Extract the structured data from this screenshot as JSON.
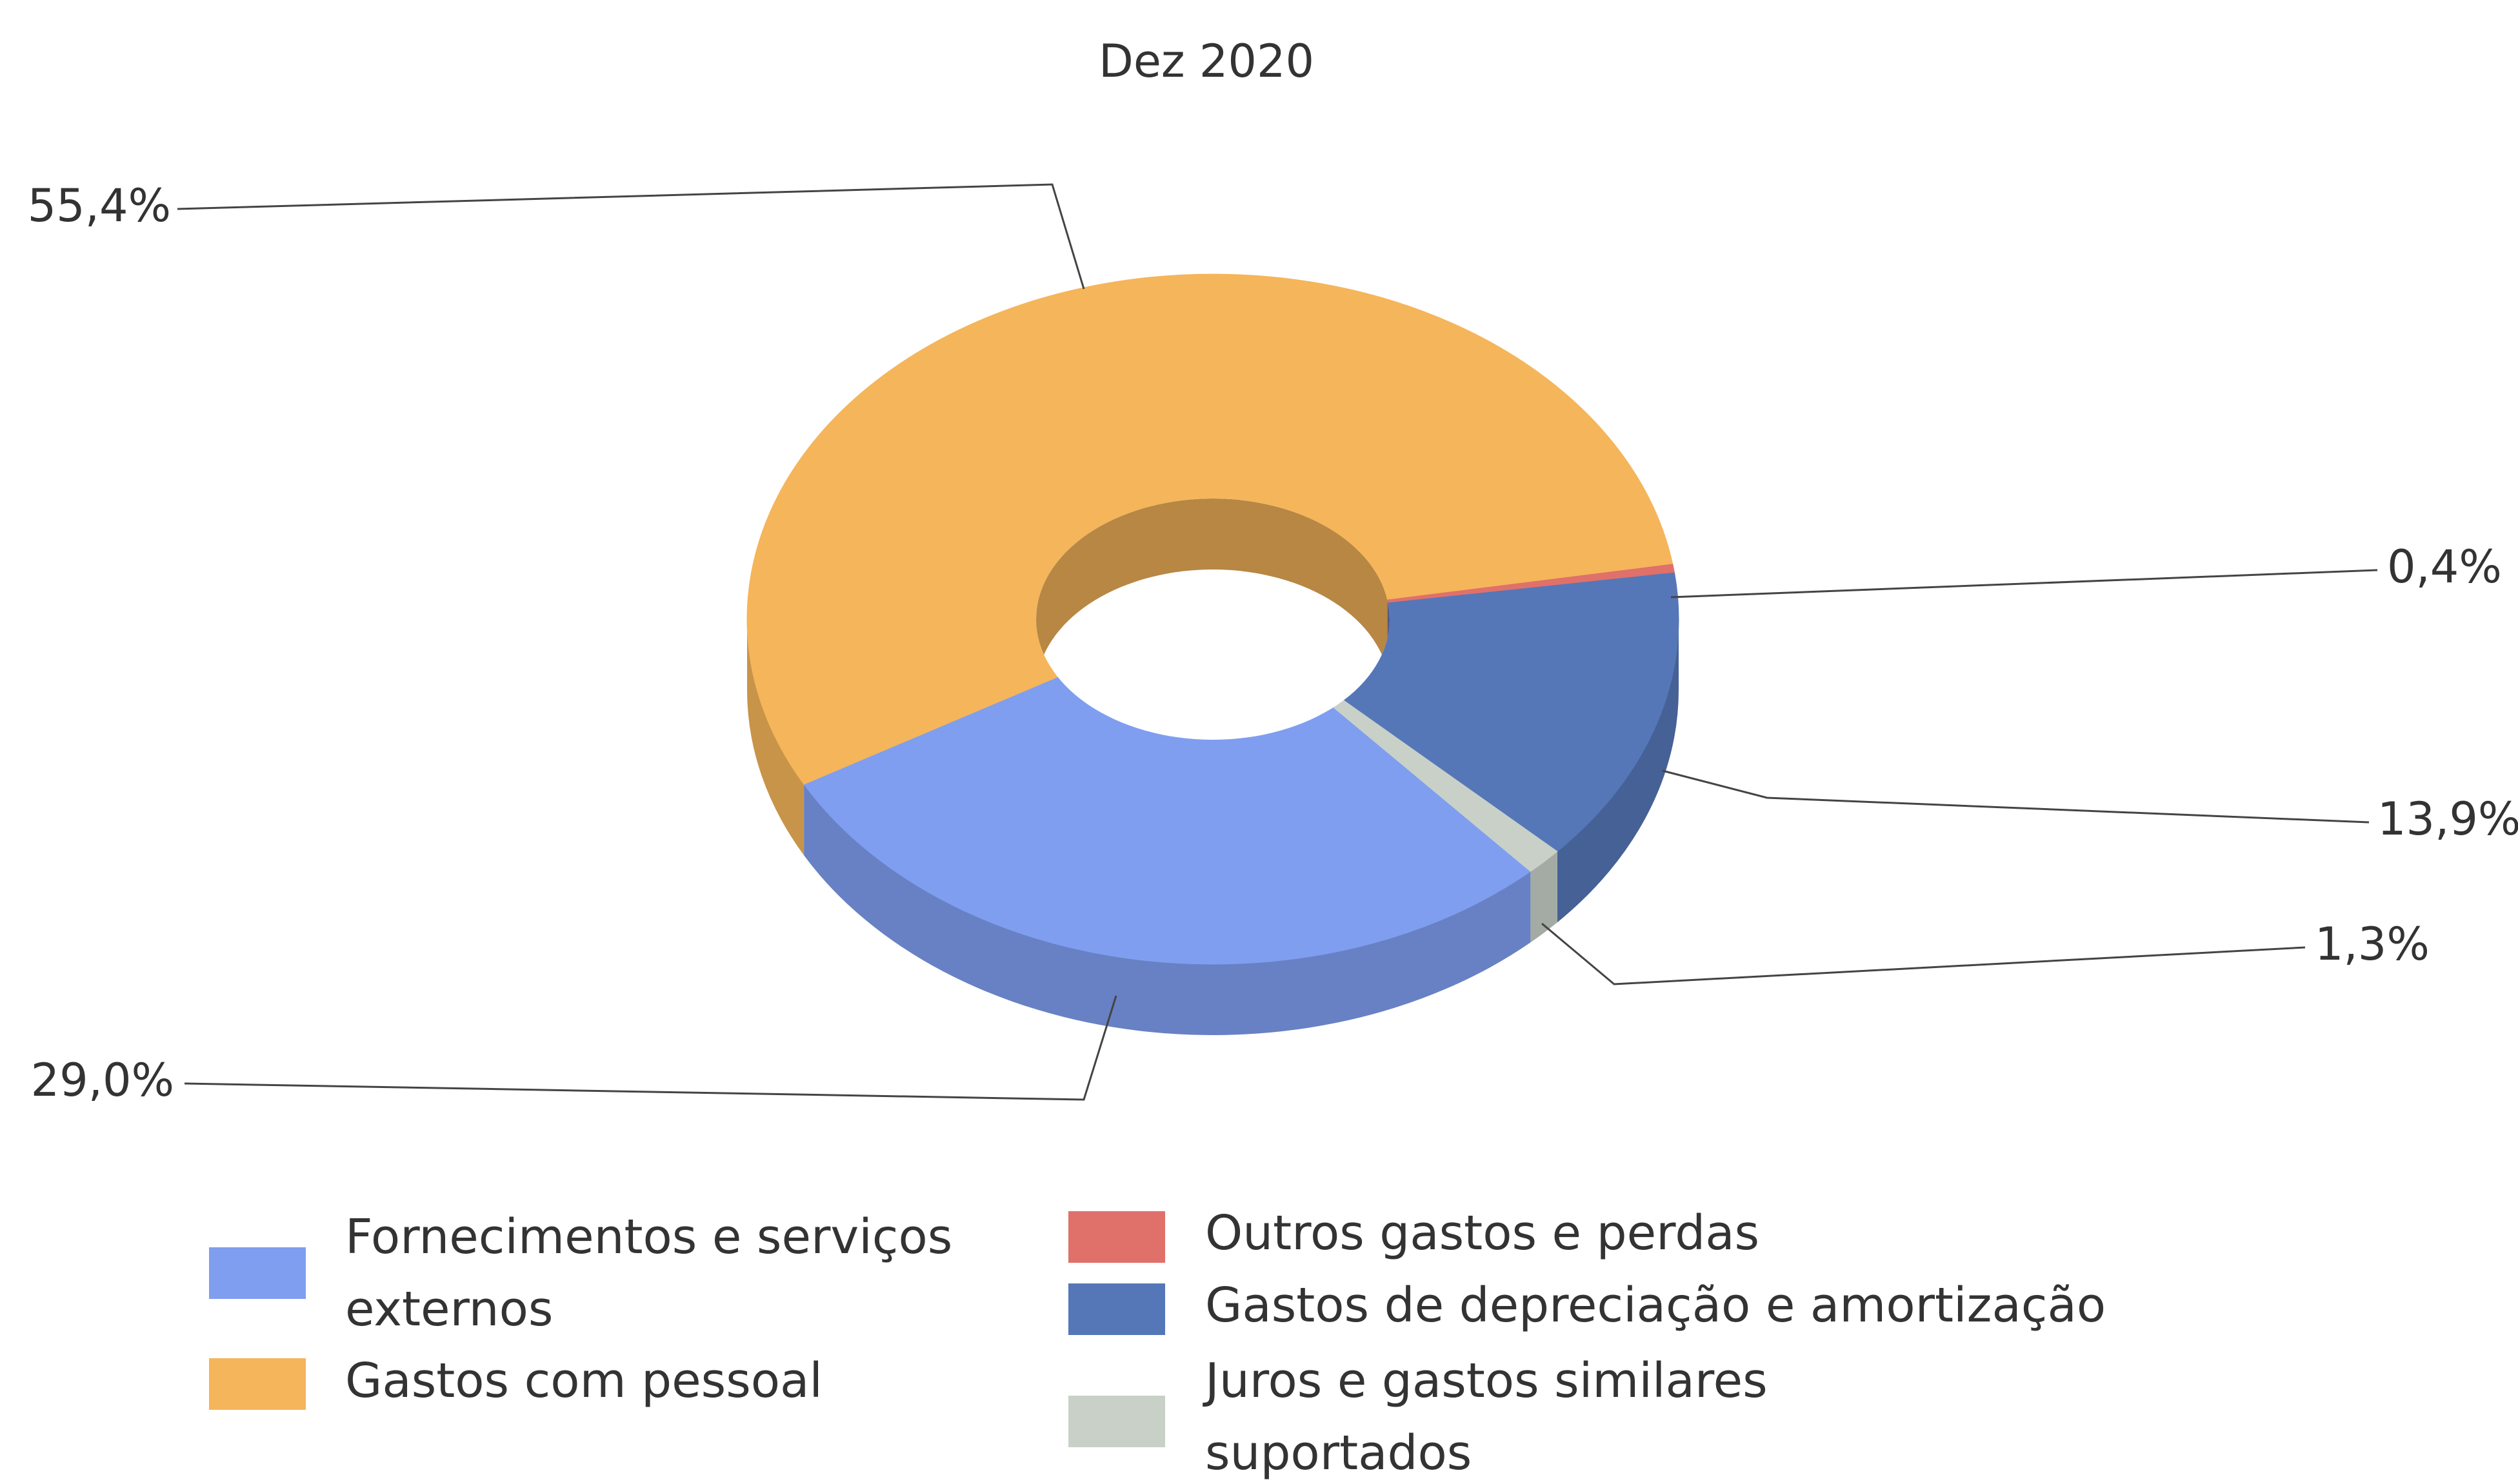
{
  "chart_data": {
    "type": "pie",
    "donut": true,
    "three_d": true,
    "title": "Dez 2020",
    "categories": [
      "Fornecimentos e serviços externos",
      "Gastos com pessoal",
      "Outros gastos e perdas",
      "Gastos de depreciação e amortização",
      "Juros e gastos similares suportados"
    ],
    "values": [
      29.0,
      55.4,
      0.4,
      13.9,
      1.3
    ],
    "value_labels": [
      "29,0%",
      "55,4%",
      "0,4%",
      "13,9%",
      "1,3%"
    ],
    "colors": [
      "#7f9ef0",
      "#f5b55a",
      "#e0706a",
      "#5577b8",
      "#c8d0c8"
    ],
    "legend": "bottom"
  }
}
